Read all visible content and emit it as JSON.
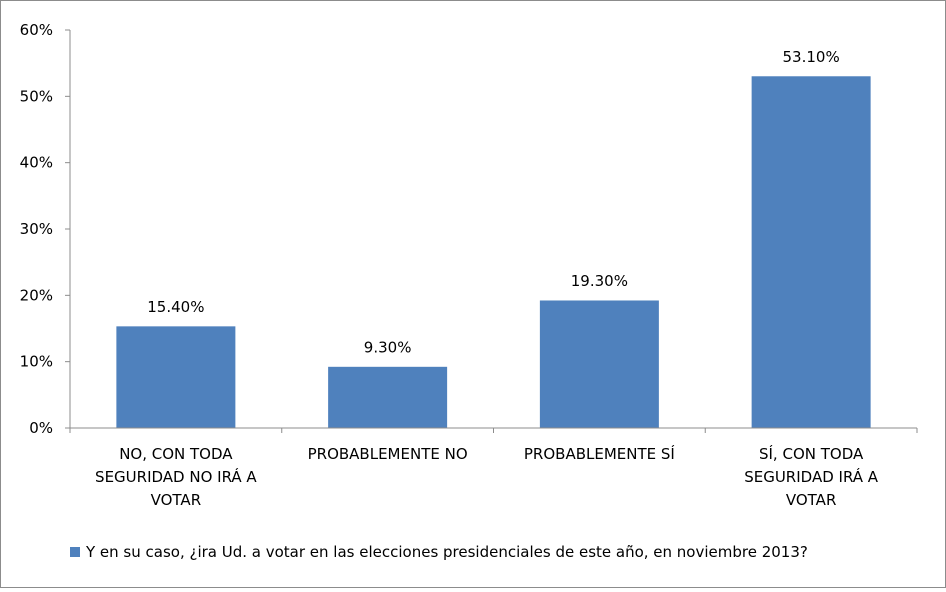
{
  "chart_data": {
    "type": "bar",
    "categories": [
      "NO, CON TODA SEGURIDAD NO IRÁ A VOTAR",
      "PROBABLEMENTE NO",
      "PROBABLEMENTE SÍ",
      "SÍ, CON TODA SEGURIDAD IRÁ A VOTAR"
    ],
    "category_lines": [
      [
        "NO, CON TODA",
        "SEGURIDAD NO IRÁ A",
        "VOTAR"
      ],
      [
        "PROBABLEMENTE NO"
      ],
      [
        "PROBABLEMENTE SÍ"
      ],
      [
        "SÍ, CON TODA",
        "SEGURIDAD IRÁ A",
        "VOTAR"
      ]
    ],
    "series": [
      {
        "name": "Y en su caso, ¿ira Ud. a votar en las elecciones presidenciales de este año, en noviembre 2013?",
        "values": [
          15.4,
          9.3,
          19.3,
          53.1
        ],
        "labels": [
          "15.40%",
          "9.30%",
          "19.30%",
          "53.10%"
        ],
        "color": "#4f81bd"
      }
    ],
    "yticks": [
      "0%",
      "10%",
      "20%",
      "30%",
      "40%",
      "50%",
      "60%"
    ],
    "ylim": [
      0,
      60
    ],
    "grid": false,
    "legend_position": "bottom"
  }
}
